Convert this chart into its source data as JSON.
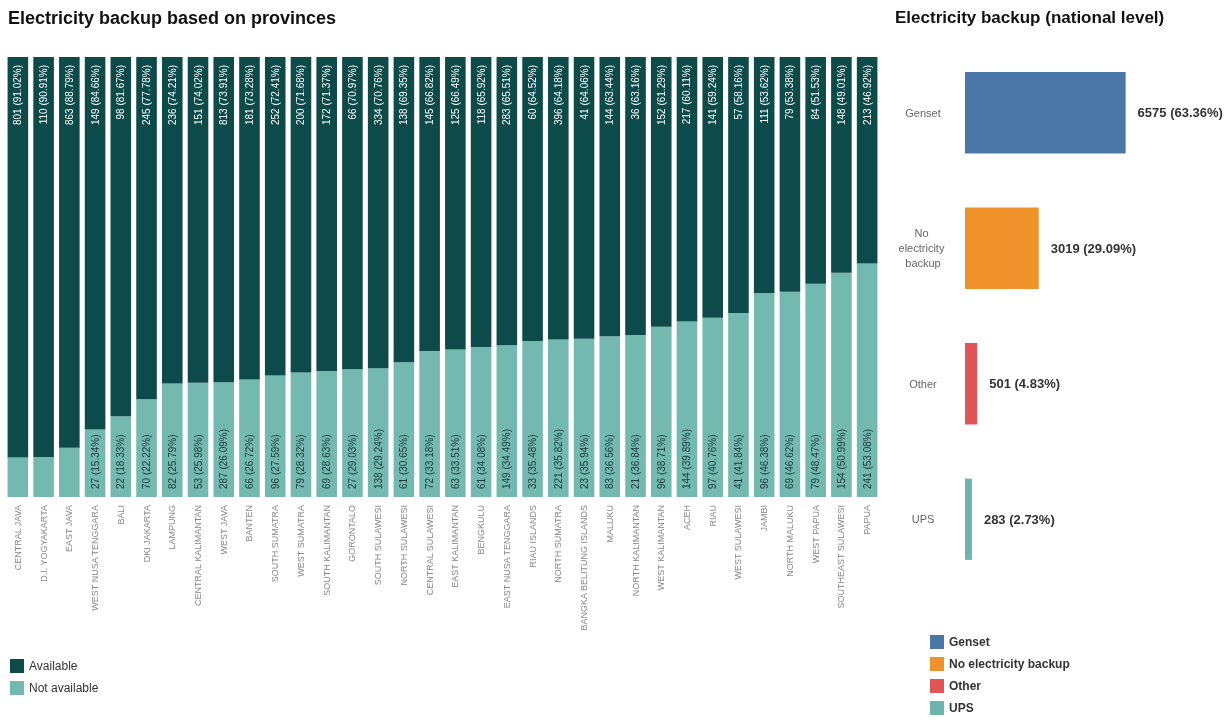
{
  "chart_data": [
    {
      "type": "bar",
      "stacked": true,
      "title": "Electricity backup based on provinces",
      "legend": "bottom left",
      "tick_labels": "x",
      "ylim": [
        0,
        100
      ],
      "categories": [
        "CENTRAL JAVA",
        "D.I. YOGYAKARTA",
        "EAST JAVA",
        "WEST NUSA TENGGARA",
        "BALI",
        "DKI JAKARTA",
        "LAMPUNG",
        "CENTRAL KALIMANTAN",
        "WEST JAVA",
        "BANTEN",
        "SOUTH SUMATRA",
        "WEST SUMATRA",
        "SOUTH KALIMANTAN",
        "GORONTALO",
        "SOUTH SULAWESI",
        "NORTH SULAWESI",
        "CENTRAL SULAWESI",
        "EAST KALIMANTAN",
        "BENGKULU",
        "EAST NUSA TENGGARA",
        "RIAU ISLANDS",
        "NORTH SUMATRA",
        "BANGKA BELITUNG ISLANDS",
        "MALUKU",
        "NORTH KALIMANTAN",
        "WEST KALIMANTAN",
        "ACEH",
        "RIAU",
        "WEST SULAWESI",
        "JAMBI",
        "NORTH MALUKU",
        "WEST PAPUA",
        "SOUTHEAST SULAWESI",
        "PAPUA"
      ],
      "series": [
        {
          "name": "Not available",
          "color": "#74b9b0",
          "values": [
            8.98,
            9.09,
            11.21,
            15.34,
            18.33,
            22.22,
            25.79,
            25.98,
            26.09,
            26.72,
            27.59,
            28.32,
            28.63,
            29.03,
            29.24,
            30.65,
            33.18,
            33.51,
            34.08,
            34.49,
            35.48,
            35.82,
            35.94,
            36.56,
            36.84,
            38.71,
            39.89,
            40.76,
            41.84,
            46.38,
            46.62,
            48.47,
            50.99,
            53.08
          ],
          "value_labels": [
            null,
            null,
            null,
            "27 (15.34%)",
            "22 (18.33%)",
            "70 (22.22%)",
            "82 (25.79%)",
            "53 (25.98%)",
            "287 (26.09%)",
            "66 (26.72%)",
            "96 (27.59%)",
            "79 (28.32%)",
            "69 (28.63%)",
            "27 (29.03%)",
            "138 (29.24%)",
            "61 (30.65%)",
            "72 (33.18%)",
            "63 (33.51%)",
            "61 (34.08%)",
            "149 (34.49%)",
            "33 (35.48%)",
            "221 (35.82%)",
            "23 (35.94%)",
            "83 (36.56%)",
            "21 (36.84%)",
            "96 (38.71%)",
            "144 (39.89%)",
            "97 (40.76%)",
            "41 (41.84%)",
            "96 (46.38%)",
            "69 (46.62%)",
            "79 (48.47%)",
            "154 (50.99%)",
            "241 (53.08%)"
          ]
        },
        {
          "name": "Available",
          "color": "#0d4a4a",
          "values": [
            91.02,
            90.91,
            88.79,
            84.66,
            81.67,
            77.78,
            74.21,
            74.02,
            73.91,
            73.28,
            72.41,
            71.68,
            71.37,
            70.97,
            70.76,
            69.35,
            66.82,
            66.49,
            65.92,
            65.51,
            64.52,
            64.18,
            64.06,
            63.44,
            63.16,
            61.29,
            60.11,
            59.24,
            58.16,
            53.62,
            53.38,
            51.53,
            49.01,
            46.92
          ],
          "value_labels": [
            "801 (91.02%)",
            "110 (90.91%)",
            "863 (88.79%)",
            "149 (84.66%)",
            "98 (81.67%)",
            "245 (77.78%)",
            "236 (74.21%)",
            "151 (74.02%)",
            "813 (73.91%)",
            "181 (73.28%)",
            "252 (72.41%)",
            "200 (71.68%)",
            "172 (71.37%)",
            "66 (70.97%)",
            "334 (70.76%)",
            "138 (69.35%)",
            "145 (66.82%)",
            "125 (66.49%)",
            "118 (65.92%)",
            "283 (65.51%)",
            "60 (64.52%)",
            "396 (64.18%)",
            "41 (64.06%)",
            "144 (63.44%)",
            "36 (63.16%)",
            "152 (61.29%)",
            "217 (60.11%)",
            "141 (59.24%)",
            "57 (58.16%)",
            "111 (53.62%)",
            "79 (53.38%)",
            "84 (51.53%)",
            "148 (49.01%)",
            "213 (46.92%)"
          ]
        }
      ]
    },
    {
      "type": "bar",
      "orientation": "horizontal",
      "stacked": true,
      "title": "Electricity backup (national level)",
      "legend": "bottom",
      "tick_labels": "y",
      "categories": [
        "Genset",
        "No electricity backup",
        "Other",
        "UPS"
      ],
      "series": [
        {
          "name": "Genset",
          "color": "#4a77a8",
          "values": [
            6575,
            null,
            null,
            null
          ],
          "value_labels": [
            "6575 (63.36%)",
            null,
            null,
            null
          ]
        },
        {
          "name": "No electricity backup",
          "color": "#f0922b",
          "values": [
            null,
            3019,
            null,
            null
          ],
          "value_labels": [
            null,
            "3019 (29.09%)",
            null,
            null
          ]
        },
        {
          "name": "Other",
          "color": "#e05555",
          "values": [
            null,
            null,
            501,
            null
          ],
          "value_labels": [
            null,
            null,
            "501 (4.83%)",
            null
          ]
        },
        {
          "name": "UPS",
          "color": "#6fb3ad",
          "values": [
            null,
            null,
            null,
            283
          ],
          "value_labels": [
            null,
            null,
            null,
            "283 (2.73%)"
          ]
        }
      ]
    }
  ]
}
